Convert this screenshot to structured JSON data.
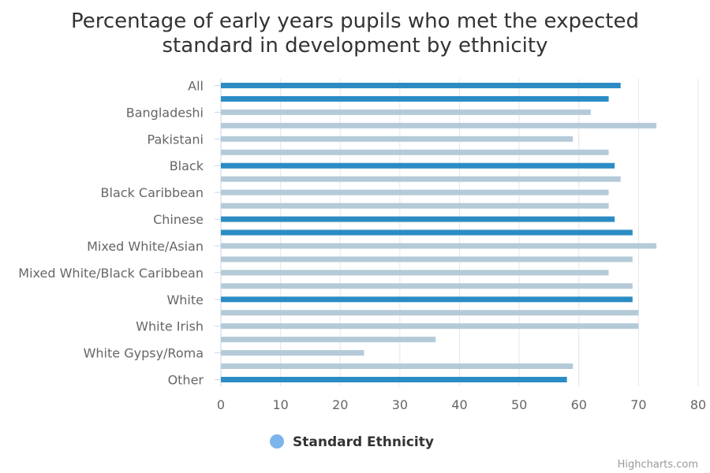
{
  "colors": {
    "highlight": "#2b8cc4",
    "other": "#b4cad8",
    "legend_marker": "#7cb5ec",
    "grid": "#e6e6e6"
  },
  "legend": {
    "label": "Standard Ethnicity"
  },
  "credits": "Highcharts.com",
  "chart_data": {
    "type": "bar",
    "title": "Percentage of early years pupils who met the expected standard in development by ethnicity",
    "title_lines": [
      "Percentage of early years pupils who met the expected",
      "standard in development by ethnicity"
    ],
    "labeled_categories": [
      "All",
      "Bangladeshi",
      "Pakistani",
      "Black",
      "Black Caribbean",
      "Chinese",
      "Mixed White/Asian",
      "Mixed White/Black Caribbean",
      "White",
      "White Irish",
      "White Gypsy/Roma",
      "Other"
    ],
    "xlim": [
      0,
      80
    ],
    "x_ticks": [
      0,
      10,
      20,
      30,
      40,
      50,
      60,
      70,
      80
    ],
    "grid": true,
    "legend_position": "bottom",
    "series": [
      {
        "name": "Standard Ethnicity",
        "values": [
          67,
          65,
          62,
          73,
          59,
          65,
          66,
          67,
          65,
          65,
          66,
          69,
          73,
          69,
          65,
          69,
          69,
          70,
          70,
          36,
          24,
          59,
          58
        ],
        "highlighted": [
          true,
          true,
          false,
          false,
          false,
          false,
          true,
          false,
          false,
          false,
          true,
          true,
          false,
          false,
          false,
          false,
          true,
          false,
          false,
          false,
          false,
          false,
          true
        ]
      }
    ]
  }
}
